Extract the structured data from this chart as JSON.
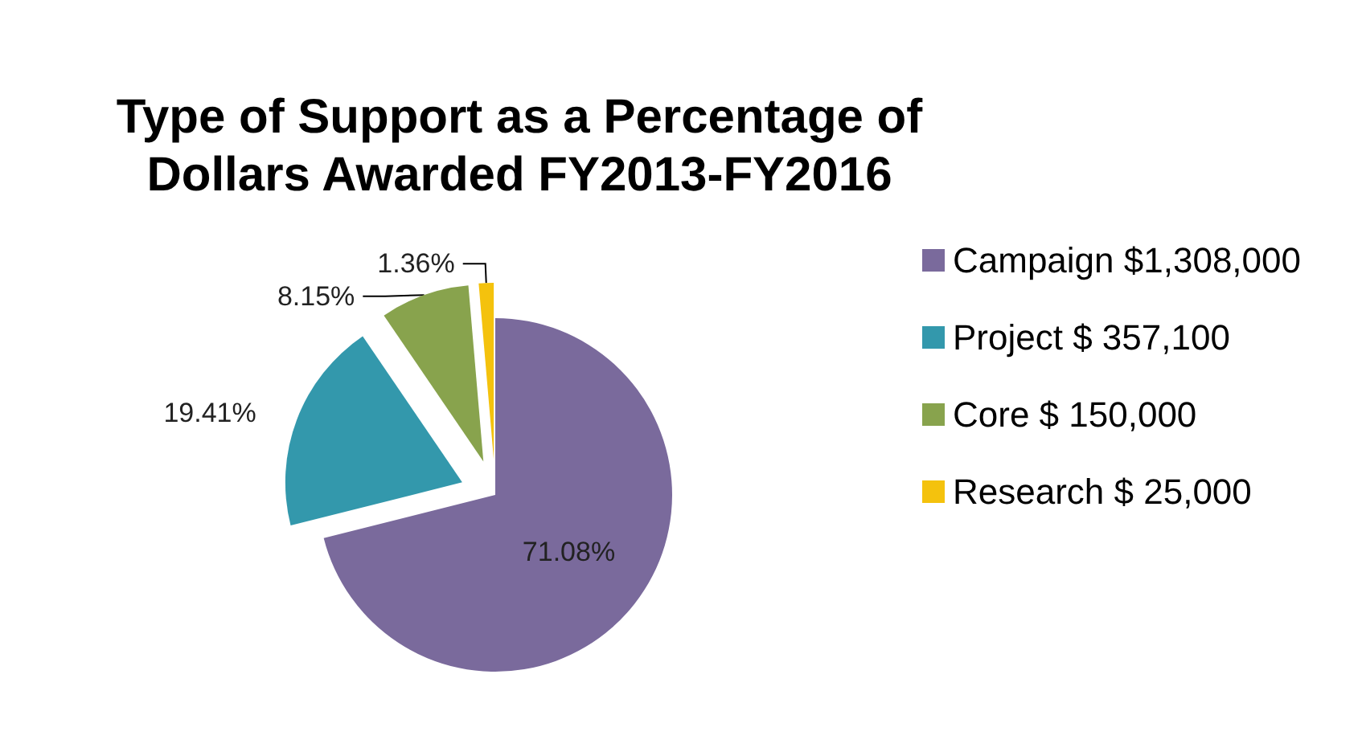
{
  "chart_data": {
    "type": "pie",
    "title": "Type of Support as a Percentage of\nDollars Awarded FY2013-FY2016",
    "categories": [
      "Campaign $1,308,000",
      "Project $ 357,100",
      "Core $ 150,000",
      "Research $ 25,000"
    ],
    "values": [
      71.08,
      19.41,
      8.15,
      1.36
    ],
    "colors": [
      "#7a6a9c",
      "#3398ac",
      "#88a34d",
      "#f4c20d"
    ],
    "value_labels": [
      "71.08%",
      "19.41%",
      "8.15%",
      "1.36%"
    ],
    "legend": "right"
  }
}
